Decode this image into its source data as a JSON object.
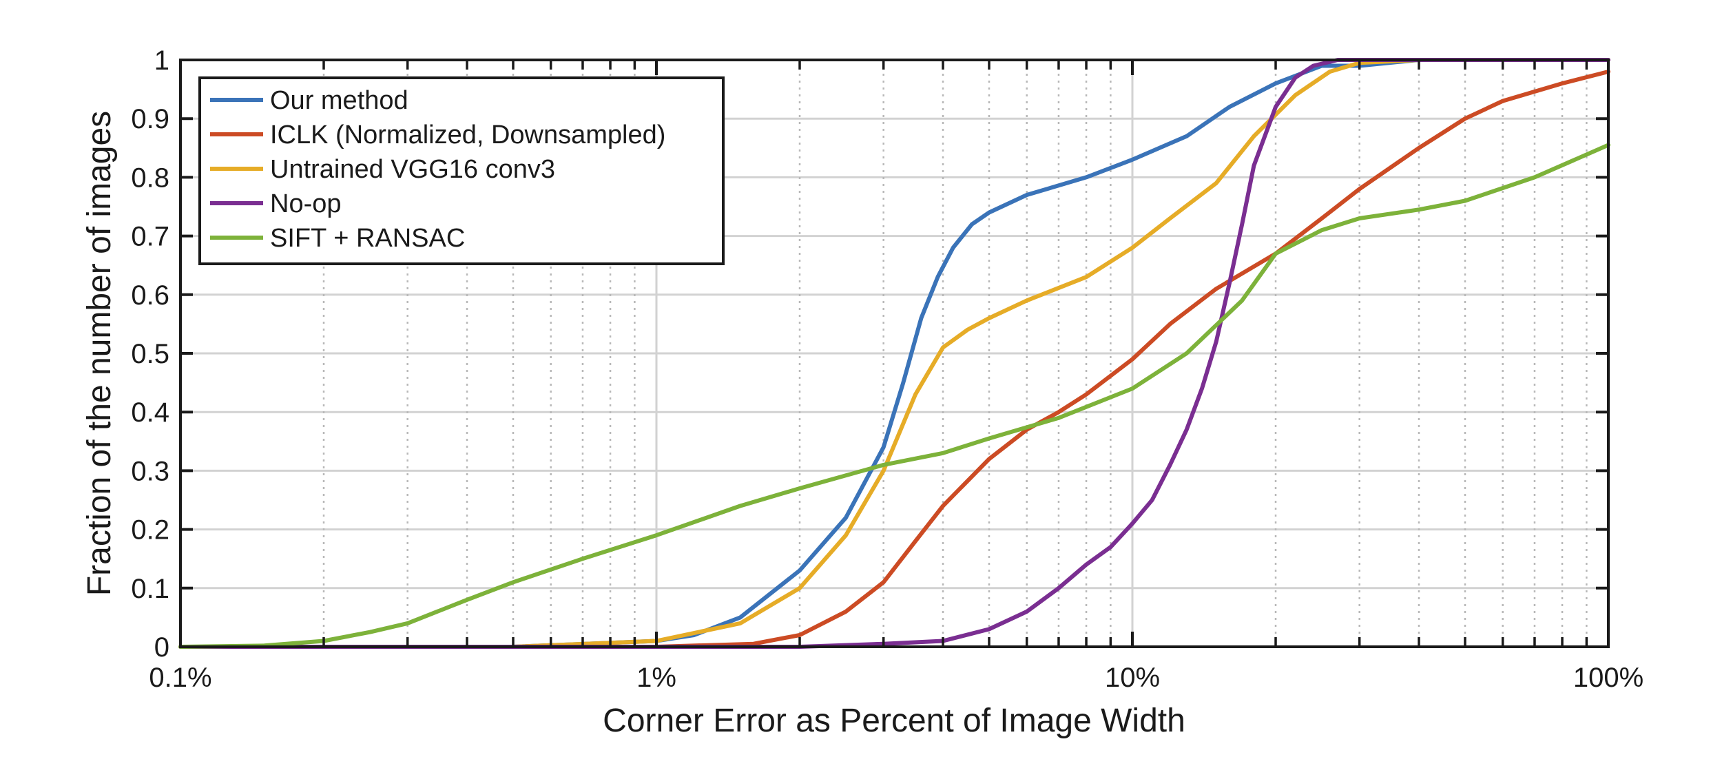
{
  "chart_data": {
    "type": "line",
    "title": "",
    "xlabel": "Corner Error as Percent of Image Width",
    "ylabel": "Fraction of the number of images",
    "x_scale": "log",
    "xlim": [
      0.1,
      100
    ],
    "ylim": [
      0,
      1
    ],
    "x_tick_values": [
      0.1,
      1,
      10,
      100
    ],
    "x_tick_labels": [
      "0.1%",
      "1%",
      "10%",
      "100%"
    ],
    "y_ticks": [
      0,
      0.1,
      0.2,
      0.3,
      0.4,
      0.5,
      0.6,
      0.7,
      0.8,
      0.9,
      1
    ],
    "y_tick_labels": [
      "0",
      "0.1",
      "0.2",
      "0.3",
      "0.4",
      "0.5",
      "0.6",
      "0.7",
      "0.8",
      "0.9",
      "1"
    ],
    "grid": true,
    "minor_grid": true,
    "legend_position": "top-left",
    "series": [
      {
        "name": "Our method",
        "color": "#3a73b8",
        "x": [
          0.1,
          0.5,
          1,
          1.2,
          1.5,
          2,
          2.5,
          3,
          3.3,
          3.6,
          3.9,
          4.2,
          4.6,
          5,
          6,
          8,
          10,
          13,
          16,
          20,
          25,
          30,
          40,
          60,
          100
        ],
        "y": [
          0,
          0,
          0.01,
          0.02,
          0.05,
          0.13,
          0.22,
          0.34,
          0.45,
          0.56,
          0.63,
          0.68,
          0.72,
          0.74,
          0.77,
          0.8,
          0.83,
          0.87,
          0.92,
          0.96,
          0.99,
          0.99,
          1,
          1,
          1
        ]
      },
      {
        "name": "ICLK (Normalized, Downsampled)",
        "color": "#cc4b24",
        "x": [
          0.1,
          1,
          1.6,
          2,
          2.5,
          3,
          3.5,
          4,
          5,
          6,
          7,
          8,
          10,
          12,
          15,
          20,
          25,
          30,
          40,
          50,
          60,
          80,
          100
        ],
        "y": [
          0,
          0,
          0.005,
          0.02,
          0.06,
          0.11,
          0.18,
          0.24,
          0.32,
          0.37,
          0.4,
          0.43,
          0.49,
          0.55,
          0.61,
          0.67,
          0.73,
          0.78,
          0.85,
          0.9,
          0.93,
          0.96,
          0.98
        ]
      },
      {
        "name": "Untrained VGG16 conv3",
        "color": "#e6ac27",
        "x": [
          0.1,
          0.5,
          1,
          1.5,
          2,
          2.5,
          3,
          3.5,
          4,
          4.5,
          5,
          6,
          8,
          10,
          12,
          15,
          18,
          22,
          26,
          30,
          40,
          100
        ],
        "y": [
          0,
          0,
          0.01,
          0.04,
          0.1,
          0.19,
          0.3,
          0.43,
          0.51,
          0.54,
          0.56,
          0.59,
          0.63,
          0.68,
          0.73,
          0.79,
          0.87,
          0.94,
          0.98,
          0.995,
          1,
          1
        ]
      },
      {
        "name": "No-op",
        "color": "#7a2e91",
        "x": [
          0.1,
          2,
          3,
          4,
          5,
          6,
          7,
          8,
          9,
          10,
          11,
          12,
          13,
          14,
          15,
          16,
          17,
          18,
          20,
          22,
          24,
          27,
          30,
          100
        ],
        "y": [
          0,
          0,
          0.005,
          0.01,
          0.03,
          0.06,
          0.1,
          0.14,
          0.17,
          0.21,
          0.25,
          0.31,
          0.37,
          0.44,
          0.52,
          0.62,
          0.72,
          0.82,
          0.92,
          0.97,
          0.99,
          1,
          1,
          1
        ]
      },
      {
        "name": "SIFT + RANSAC",
        "color": "#7db23a",
        "x": [
          0.1,
          0.15,
          0.2,
          0.25,
          0.3,
          0.4,
          0.5,
          0.7,
          1,
          1.5,
          2,
          3,
          4,
          5,
          7,
          10,
          13,
          17,
          20,
          25,
          30,
          40,
          50,
          70,
          100
        ],
        "y": [
          0,
          0.002,
          0.01,
          0.025,
          0.04,
          0.08,
          0.11,
          0.15,
          0.19,
          0.24,
          0.27,
          0.31,
          0.33,
          0.355,
          0.39,
          0.44,
          0.5,
          0.59,
          0.67,
          0.71,
          0.73,
          0.745,
          0.76,
          0.8,
          0.855
        ]
      }
    ]
  }
}
